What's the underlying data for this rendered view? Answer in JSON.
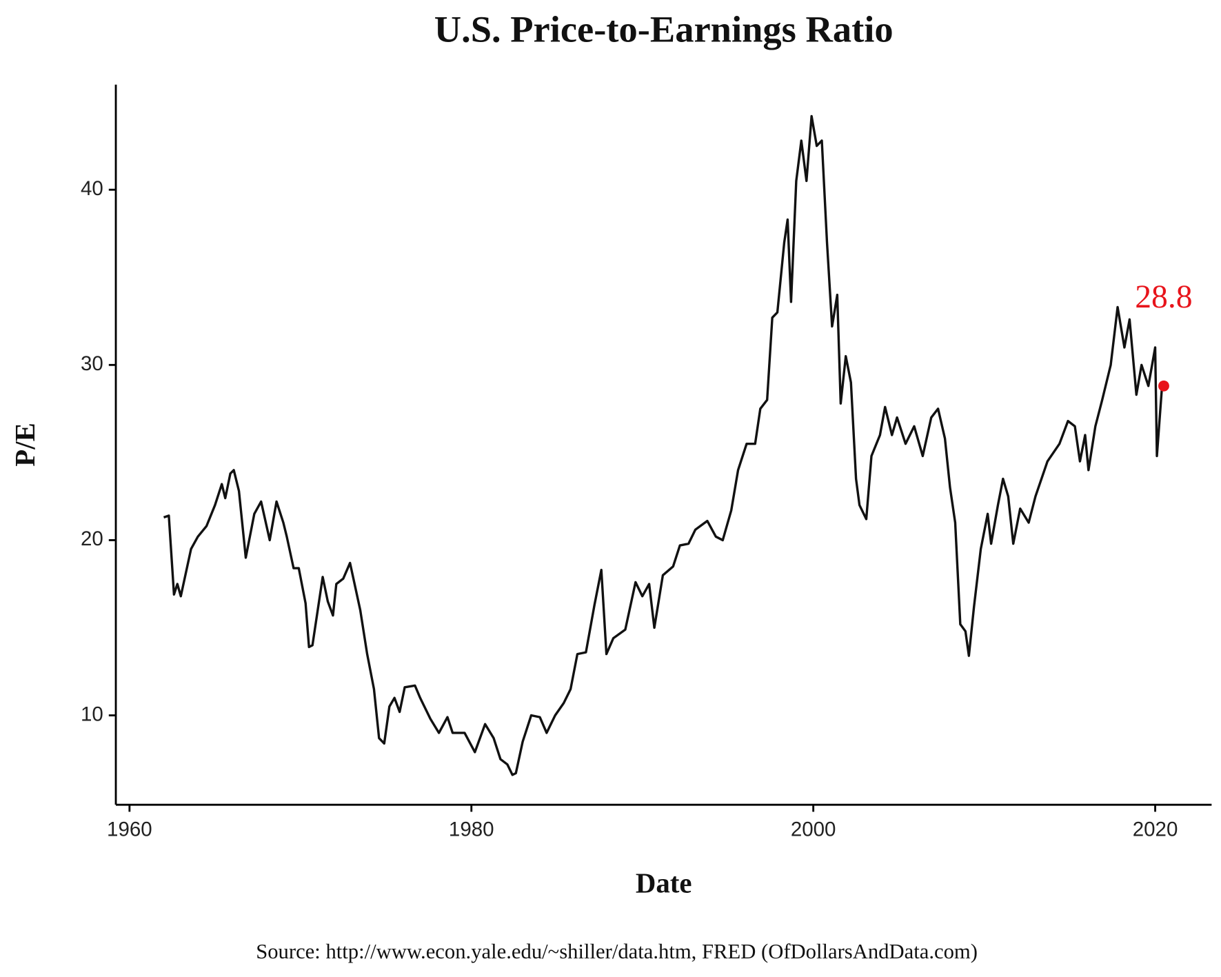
{
  "chart_data": {
    "type": "line",
    "title": "U.S. Price-to-Earnings Ratio",
    "x_label": "Date",
    "y_label": "P/E",
    "source": "Source:  http://www.econ.yale.edu/~shiller/data.htm, FRED (OfDollarsAndData.com)",
    "xlim": [
      1959.2,
      2023.3
    ],
    "ylim": [
      4.9,
      46.0
    ],
    "xticks": [
      1960,
      1980,
      2000,
      2020
    ],
    "yticks": [
      10,
      20,
      30,
      40
    ],
    "grid": false,
    "series": [
      {
        "name": "P/E",
        "color": "#111111",
        "x": [
          1962.0,
          1962.3,
          1962.6,
          1962.8,
          1963.0,
          1963.6,
          1964.0,
          1964.5,
          1965.0,
          1965.4,
          1965.6,
          1965.9,
          1966.1,
          1966.4,
          1966.8,
          1967.3,
          1967.7,
          1968.2,
          1968.6,
          1969.0,
          1969.2,
          1969.6,
          1969.9,
          1970.3,
          1970.5,
          1970.7,
          1971.3,
          1971.6,
          1971.9,
          1972.1,
          1972.5,
          1972.9,
          1973.5,
          1973.9,
          1974.3,
          1974.6,
          1974.9,
          1975.2,
          1975.5,
          1975.8,
          1976.1,
          1976.7,
          1977.0,
          1977.6,
          1978.1,
          1978.6,
          1978.9,
          1979.6,
          1980.2,
          1980.8,
          1981.3,
          1981.7,
          1982.1,
          1982.4,
          1982.6,
          1983.0,
          1983.5,
          1984.0,
          1984.4,
          1984.9,
          1985.4,
          1985.8,
          1986.2,
          1986.7,
          1987.2,
          1987.6,
          1987.9,
          1988.3,
          1989.0,
          1989.6,
          1990.0,
          1990.4,
          1990.7,
          1991.2,
          1991.8,
          1992.2,
          1992.7,
          1993.1,
          1993.8,
          1994.3,
          1994.7,
          1995.2,
          1995.6,
          1996.1,
          1996.6,
          1996.9,
          1997.3,
          1997.6,
          1997.9,
          1998.3,
          1998.5,
          1998.7,
          1999.0,
          1999.3,
          1999.6,
          1999.9,
          2000.2,
          2000.5,
          2000.8,
          2001.1,
          2001.4,
          2001.6,
          2001.9,
          2002.2,
          2002.5,
          2002.7,
          2003.1,
          2003.4,
          2003.9,
          2004.2,
          2004.6,
          2004.9,
          2005.4,
          2005.9,
          2006.4,
          2006.9,
          2007.3,
          2007.7,
          2008.0,
          2008.3,
          2008.6,
          2008.9,
          2009.1,
          2009.4,
          2009.8,
          2010.2,
          2010.4,
          2010.8,
          2011.1,
          2011.4,
          2011.7,
          2012.1,
          2012.6,
          2013.0,
          2013.7,
          2014.4,
          2014.9,
          2015.3,
          2015.6,
          2015.9,
          2016.1,
          2016.5,
          2016.9,
          2017.4,
          2017.8,
          2018.2,
          2018.5,
          2018.9,
          2019.2,
          2019.6,
          2020.0,
          2020.1,
          2020.4
        ],
        "values": [
          21.3,
          21.4,
          16.9,
          17.5,
          16.8,
          19.5,
          20.2,
          20.8,
          22.0,
          23.2,
          22.4,
          23.8,
          24.0,
          22.8,
          19.0,
          21.5,
          22.2,
          20.0,
          22.2,
          21.0,
          20.2,
          18.4,
          18.4,
          16.4,
          13.9,
          14.0,
          17.9,
          16.5,
          15.7,
          17.5,
          17.8,
          18.7,
          16.0,
          13.5,
          11.5,
          8.7,
          8.4,
          10.5,
          11.0,
          10.2,
          11.6,
          11.7,
          11.0,
          9.8,
          9.0,
          9.9,
          9.0,
          9.0,
          7.9,
          9.5,
          8.7,
          7.5,
          7.2,
          6.6,
          6.7,
          8.5,
          10.0,
          9.9,
          9.0,
          10.0,
          10.7,
          11.5,
          13.5,
          13.6,
          16.3,
          18.3,
          13.5,
          14.4,
          14.9,
          17.6,
          16.8,
          17.5,
          15.0,
          18.0,
          18.5,
          19.7,
          19.8,
          20.6,
          21.1,
          20.2,
          20.0,
          21.7,
          24.0,
          25.5,
          25.5,
          27.5,
          28.0,
          32.7,
          33.0,
          37.0,
          38.3,
          33.6,
          40.5,
          42.8,
          40.5,
          44.2,
          42.5,
          42.8,
          37.0,
          32.2,
          34.0,
          27.8,
          30.5,
          29.0,
          23.5,
          22.0,
          21.2,
          24.8,
          26.0,
          27.6,
          26.0,
          27.0,
          25.5,
          26.5,
          24.8,
          27.0,
          27.5,
          25.8,
          23.0,
          21.0,
          15.2,
          14.8,
          13.4,
          16.2,
          19.5,
          21.5,
          19.8,
          22.0,
          23.5,
          22.5,
          19.8,
          21.8,
          21.0,
          22.5,
          24.5,
          25.5,
          26.8,
          26.5,
          24.5,
          26.0,
          24.0,
          26.5,
          28.0,
          30.0,
          33.3,
          31.0,
          32.6,
          28.3,
          30.0,
          28.8,
          31.0,
          24.8,
          28.8
        ]
      }
    ],
    "highlight": {
      "x": 2020.5,
      "y": 28.8,
      "color": "#e8141b"
    }
  }
}
